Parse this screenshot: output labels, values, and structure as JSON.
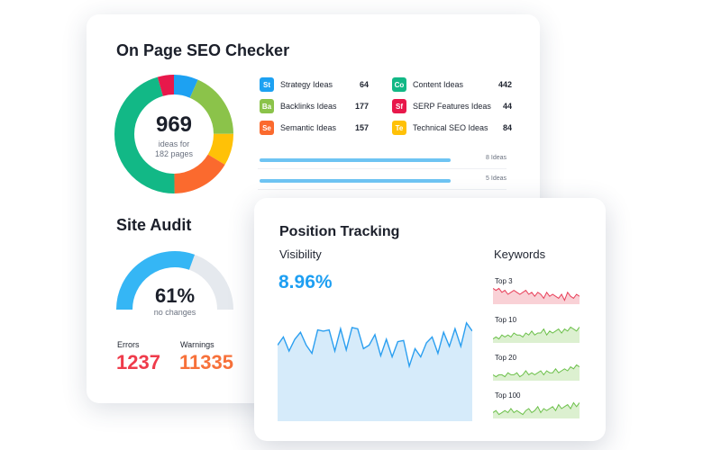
{
  "seo_checker": {
    "title": "On Page SEO Checker",
    "total": "969",
    "subtitle_line1": "ideas for",
    "subtitle_line2": "182 pages",
    "segments": [
      {
        "name": "Strategy Ideas",
        "value": 64,
        "color": "#1da1f2"
      },
      {
        "name": "Backlinks Ideas",
        "value": 177,
        "color": "#8bc34a"
      },
      {
        "name": "Semantic Ideas",
        "value": 157,
        "color": "#fb6a2e"
      },
      {
        "name": "Content Ideas",
        "value": 442,
        "color": "#12b886"
      },
      {
        "name": "SERP Features Ideas",
        "value": 44,
        "color": "#e8184b"
      },
      {
        "name": "Technical SEO Ideas",
        "value": 84,
        "color": "#ffc107"
      }
    ],
    "legend": [
      {
        "badge": "St",
        "label": "Strategy Ideas",
        "value": "64",
        "color": "#1da1f2"
      },
      {
        "badge": "Ba",
        "label": "Backlinks Ideas",
        "value": "177",
        "color": "#8bc34a"
      },
      {
        "badge": "Se",
        "label": "Semantic Ideas",
        "value": "157",
        "color": "#fb6a2e"
      },
      {
        "badge": "Co",
        "label": "Content Ideas",
        "value": "442",
        "color": "#12b886"
      },
      {
        "badge": "Sf",
        "label": "SERP Features Ideas",
        "value": "44",
        "color": "#e8184b"
      },
      {
        "badge": "Te",
        "label": "Technical SEO Ideas",
        "value": "84",
        "color": "#ffc107"
      }
    ],
    "rows": [
      {
        "label": "8 Ideas",
        "fill": 1.0
      },
      {
        "label": "5 Ideas",
        "fill": 1.0
      }
    ]
  },
  "site_audit": {
    "title": "Site Audit",
    "percent_value": 0.61,
    "percent": "61%",
    "subtitle": "no changes",
    "errors_label": "Errors",
    "errors": "1237",
    "warnings_label": "Warnings",
    "warnings": "11335"
  },
  "position_tracking": {
    "title": "Position Tracking",
    "visibility_label": "Visibility",
    "visibility": "8.96%",
    "visibility_series": [
      6.5,
      7.2,
      6.0,
      7.0,
      7.6,
      6.5,
      5.8,
      7.8,
      7.7,
      7.8,
      6.0,
      7.9,
      6.1,
      8.0,
      7.9,
      6.2,
      6.5,
      7.4,
      5.6,
      7.0,
      5.5,
      6.8,
      6.9,
      4.7,
      6.2,
      5.5,
      6.7,
      7.2,
      5.8,
      7.6,
      6.4,
      7.9,
      6.4,
      8.4,
      7.7
    ],
    "keywords_label": "Keywords",
    "keywords": [
      {
        "label": "Top 3",
        "color": "#e8405a",
        "fill": "#f9d1d6",
        "series": [
          8,
          7,
          8,
          6,
          7,
          5,
          6,
          7,
          6,
          5,
          6,
          7,
          5,
          6,
          4,
          6,
          5,
          3,
          6,
          4,
          5,
          4,
          3,
          5,
          2,
          6,
          4,
          3,
          5,
          4
        ]
      },
      {
        "label": "Top 10",
        "color": "#6cc04a",
        "fill": "#dcf0d0",
        "series": [
          2,
          3,
          2,
          4,
          3,
          4,
          3,
          5,
          4,
          4,
          3,
          5,
          4,
          6,
          4,
          5,
          5,
          7,
          4,
          6,
          5,
          6,
          7,
          5,
          7,
          6,
          8,
          7,
          6,
          8
        ]
      },
      {
        "label": "Top 20",
        "color": "#6cc04a",
        "fill": "#dcf0d0",
        "series": [
          3,
          2,
          3,
          3,
          2,
          4,
          3,
          3,
          4,
          2,
          3,
          5,
          3,
          4,
          3,
          4,
          5,
          3,
          5,
          4,
          4,
          6,
          4,
          5,
          6,
          5,
          7,
          6,
          8,
          7
        ]
      },
      {
        "label": "Top 100",
        "color": "#6cc04a",
        "fill": "#dcf0d0",
        "series": [
          3,
          4,
          2,
          3,
          4,
          3,
          5,
          3,
          4,
          3,
          2,
          4,
          5,
          3,
          4,
          6,
          3,
          5,
          4,
          5,
          6,
          4,
          7,
          5,
          6,
          7,
          5,
          8,
          6,
          8
        ]
      }
    ]
  }
}
